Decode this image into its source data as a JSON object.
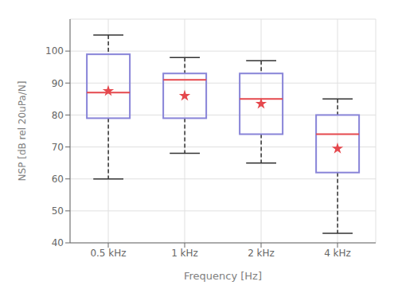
{
  "chart_data": {
    "type": "box",
    "categories": [
      "0.5 kHz",
      "1 kHz",
      "2 kHz",
      "4 kHz"
    ],
    "xlabel": "Frequency [Hz]",
    "ylabel": "NSP [dB rel 20uPa/N]",
    "ylim": [
      40,
      110
    ],
    "yticks": [
      40,
      50,
      60,
      70,
      80,
      90,
      100
    ],
    "grid": true,
    "boxes": [
      {
        "min": 60,
        "q1": 79,
        "median": 87,
        "q3": 99,
        "max": 105,
        "mean": 87.5
      },
      {
        "min": 68,
        "q1": 79,
        "median": 91,
        "q3": 93,
        "max": 98,
        "mean": 86
      },
      {
        "min": 65,
        "q1": 74,
        "median": 85,
        "q3": 93,
        "max": 97,
        "mean": 83.5
      },
      {
        "min": 43,
        "q1": 62,
        "median": 74,
        "q3": 80,
        "max": 85,
        "mean": 69.5
      }
    ]
  }
}
